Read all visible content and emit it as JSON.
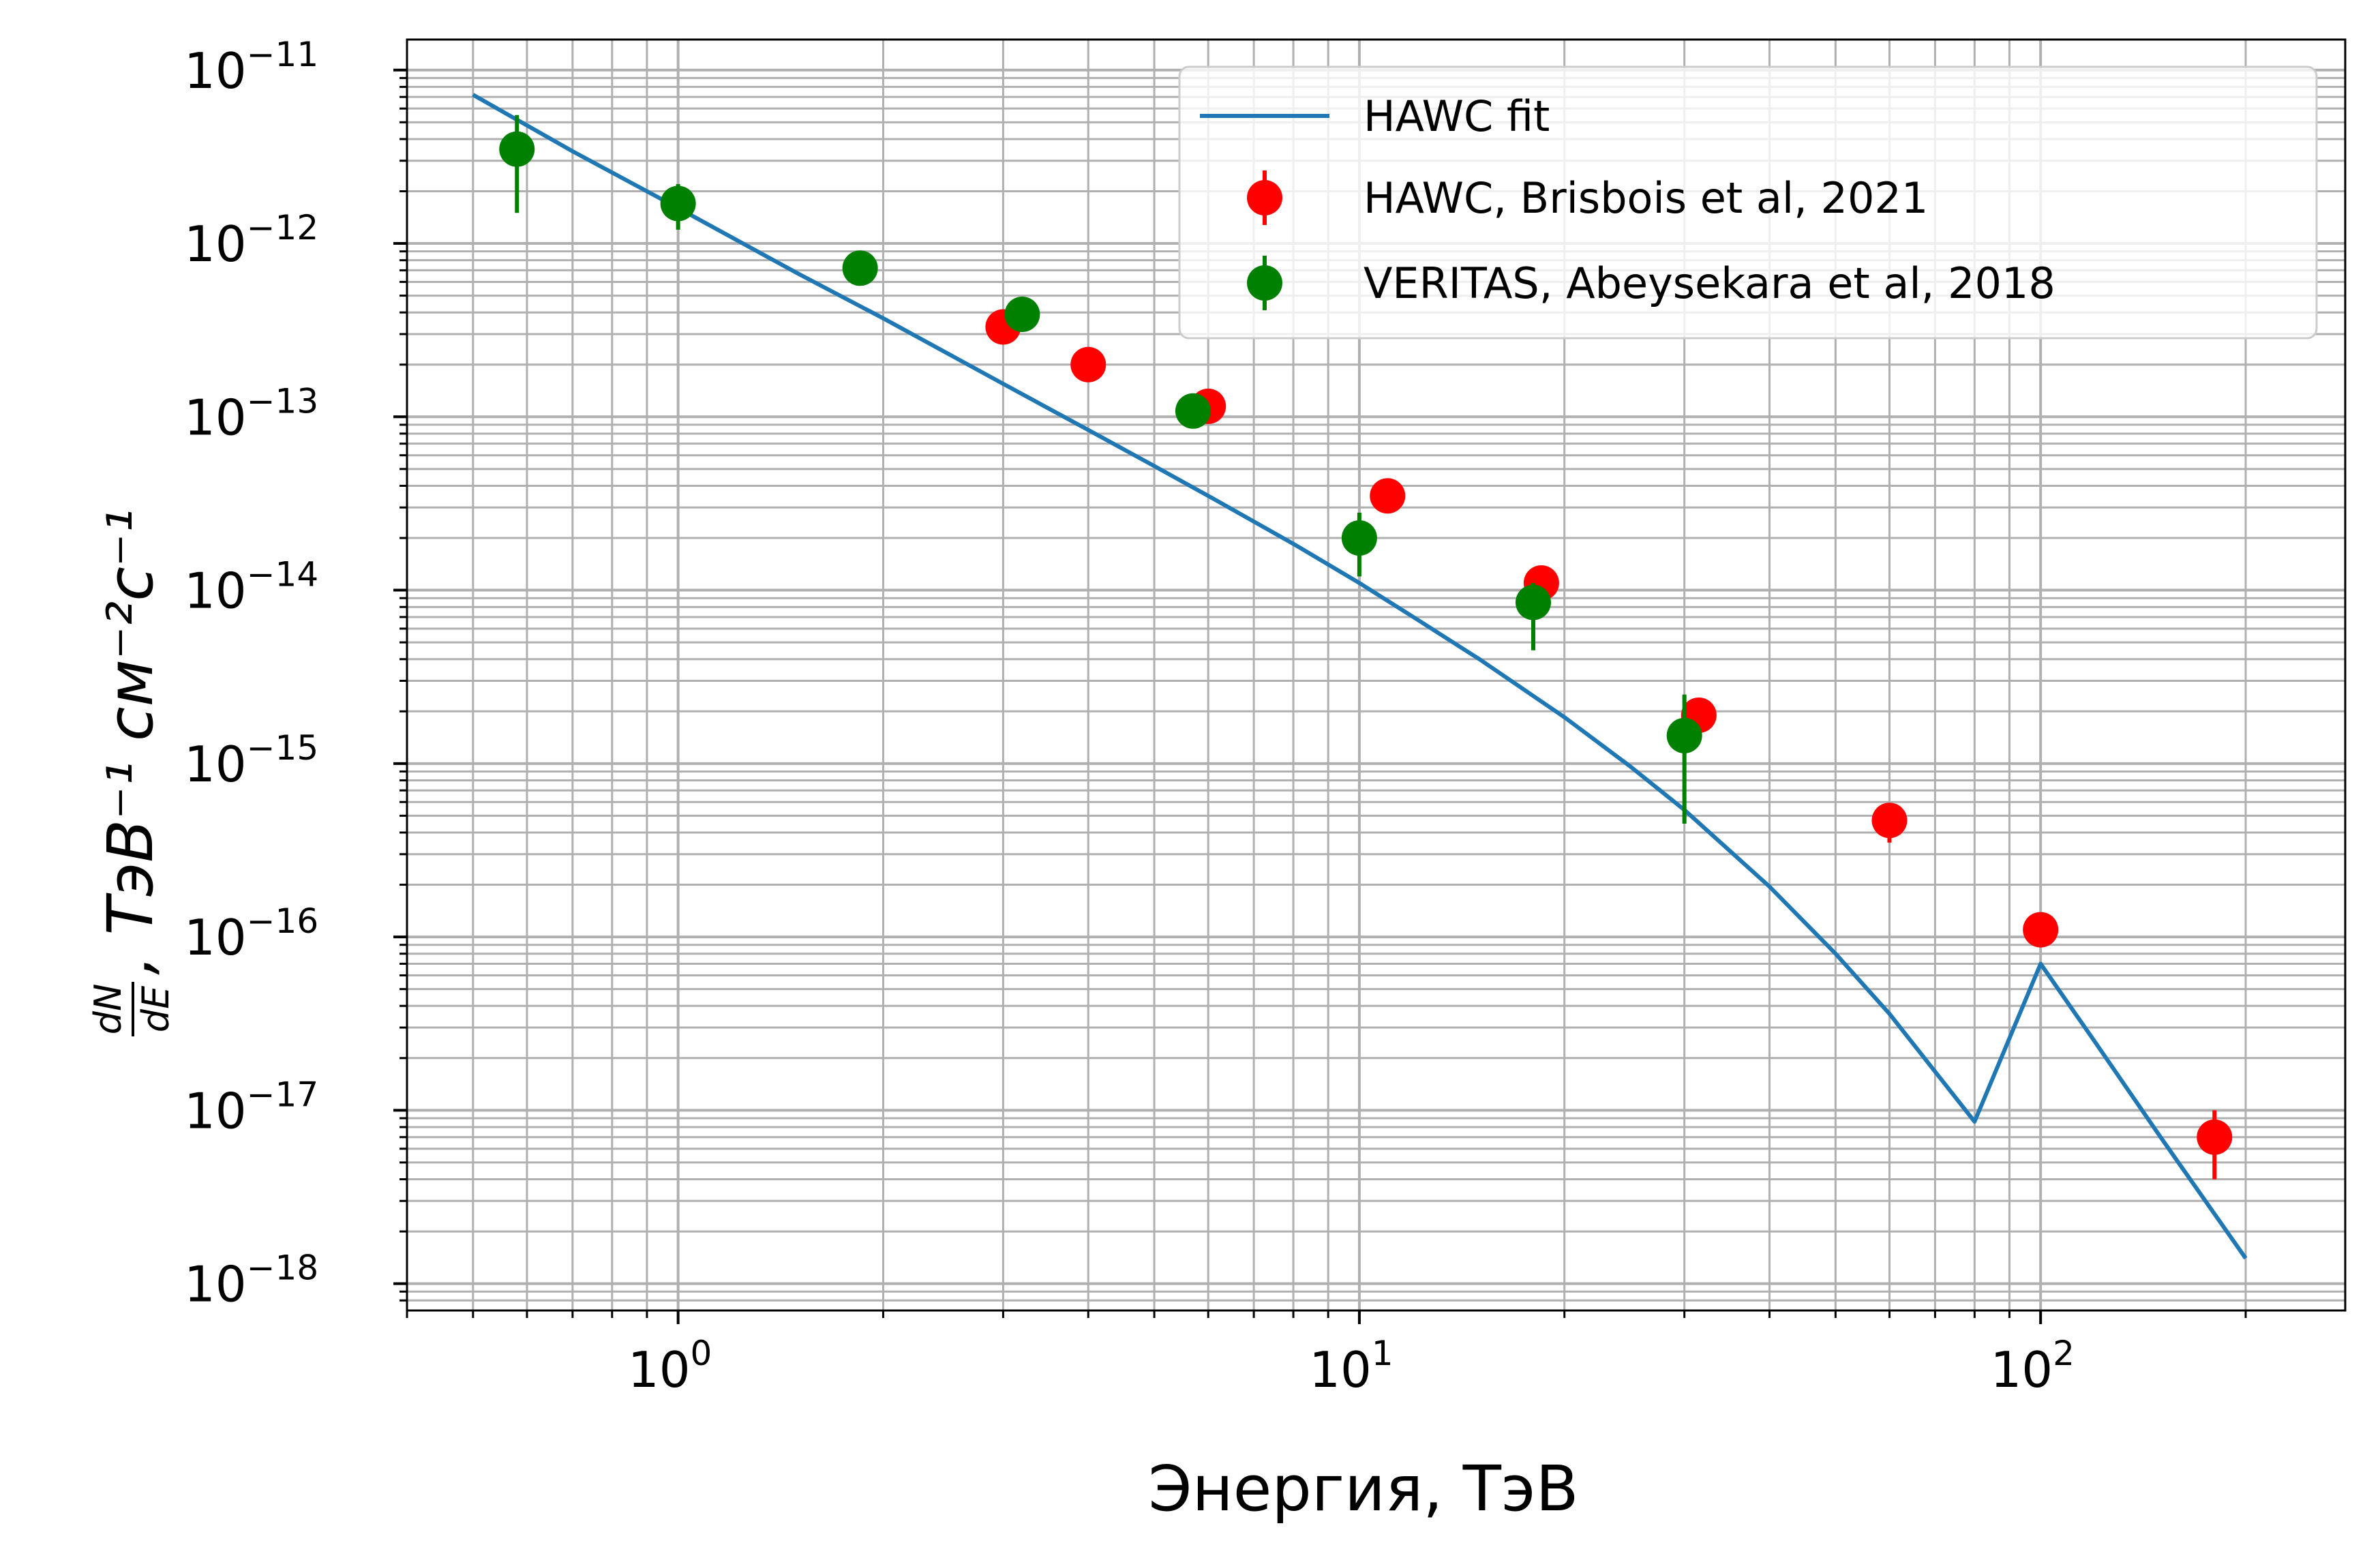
{
  "chart_data": {
    "type": "scatter",
    "xlabel": "Энергия, ТэВ",
    "ylabel_fraction_num": "dN",
    "ylabel_fraction_den": "dE",
    "ylabel_units": ",  ТэВ⁻¹ см⁻²с⁻¹",
    "xscale": "log",
    "yscale": "log",
    "xlim": [
      0.4,
      280
    ],
    "ylim": [
      7e-19,
      1.5e-11
    ],
    "grid": "both",
    "x_ticks": [
      {
        "value": 1,
        "base": "10",
        "exp": "0"
      },
      {
        "value": 10,
        "base": "10",
        "exp": "1"
      },
      {
        "value": 100,
        "base": "10",
        "exp": "2"
      }
    ],
    "y_ticks": [
      {
        "value": 1e-11,
        "base": "10",
        "exp": "−11"
      },
      {
        "value": 1e-12,
        "base": "10",
        "exp": "−12"
      },
      {
        "value": 1e-13,
        "base": "10",
        "exp": "−13"
      },
      {
        "value": 1e-14,
        "base": "10",
        "exp": "−14"
      },
      {
        "value": 1e-15,
        "base": "10",
        "exp": "−15"
      },
      {
        "value": 1e-16,
        "base": "10",
        "exp": "−16"
      },
      {
        "value": 1e-17,
        "base": "10",
        "exp": "−17"
      },
      {
        "value": 1e-18,
        "base": "10",
        "exp": "−18"
      }
    ],
    "legend_position": "upper right",
    "series": [
      {
        "name": "HAWC fit",
        "kind": "line",
        "color": "#1f77b4",
        "x": [
          0.5,
          0.7,
          1,
          1.5,
          2,
          3,
          4,
          5,
          6,
          8,
          10,
          12,
          15,
          20,
          25,
          30,
          40,
          50,
          60,
          80,
          100,
          120,
          150,
          200
        ],
        "y": [
          7.2e-12,
          3.4e-12,
          1.6e-12,
          6.7e-13,
          3.7e-13,
          1.55e-13,
          8.4e-14,
          5.2e-14,
          3.5e-14,
          1.85e-14,
          1.1e-14,
          7e-15,
          4e-15,
          1.85e-15,
          9.6e-16,
          5.4e-16,
          1.95e-16,
          8e-17,
          3.6e-17,
          8.6e-18,
          7e-17,
          2.5e-17,
          7e-18,
          1.4e-18
        ]
      },
      {
        "name": "HAWC, Brisbois et al, 2021",
        "kind": "errorbar",
        "color": "#ff0000",
        "points": [
          {
            "x": 3.0,
            "y": 3.3e-13,
            "ylo": 2.8e-13,
            "yhi": 3.8e-13
          },
          {
            "x": 4.0,
            "y": 2e-13,
            "ylo": 1.75e-13,
            "yhi": 2.25e-13
          },
          {
            "x": 6.0,
            "y": 1.15e-13,
            "ylo": 1e-13,
            "yhi": 1.3e-13
          },
          {
            "x": 11.0,
            "y": 3.5e-14,
            "ylo": 3.1e-14,
            "yhi": 3.9e-14
          },
          {
            "x": 18.5,
            "y": 1.1e-14,
            "ylo": 9.5e-15,
            "yhi": 1.25e-14
          },
          {
            "x": 31.5,
            "y": 1.9e-15,
            "ylo": 1.6e-15,
            "yhi": 2.2e-15
          },
          {
            "x": 60.0,
            "y": 4.7e-16,
            "ylo": 3.5e-16,
            "yhi": 5.9e-16
          },
          {
            "x": 100.0,
            "y": 1.1e-16,
            "ylo": 9e-17,
            "yhi": 1.3e-16
          },
          {
            "x": 180.0,
            "y": 7e-18,
            "ylo": 4e-18,
            "yhi": 1e-17
          }
        ]
      },
      {
        "name": "VERITAS, Abeysekara et al, 2018",
        "kind": "errorbar",
        "color": "#008000",
        "points": [
          {
            "x": 0.58,
            "y": 3.5e-12,
            "ylo": 1.5e-12,
            "yhi": 5.5e-12
          },
          {
            "x": 1.0,
            "y": 1.7e-12,
            "ylo": 1.2e-12,
            "yhi": 2.2e-12
          },
          {
            "x": 1.85,
            "y": 7.2e-13,
            "ylo": 6.2e-13,
            "yhi": 8.2e-13
          },
          {
            "x": 3.2,
            "y": 3.9e-13,
            "ylo": 3.4e-13,
            "yhi": 4.4e-13
          },
          {
            "x": 5.7,
            "y": 1.08e-13,
            "ylo": 9.5e-14,
            "yhi": 1.2e-13
          },
          {
            "x": 10.0,
            "y": 2e-14,
            "ylo": 1.2e-14,
            "yhi": 2.8e-14
          },
          {
            "x": 18.0,
            "y": 8.5e-15,
            "ylo": 4.5e-15,
            "yhi": 1.1e-14
          },
          {
            "x": 30.0,
            "y": 1.45e-15,
            "ylo": 4.5e-16,
            "yhi": 2.5e-15
          }
        ]
      }
    ]
  }
}
